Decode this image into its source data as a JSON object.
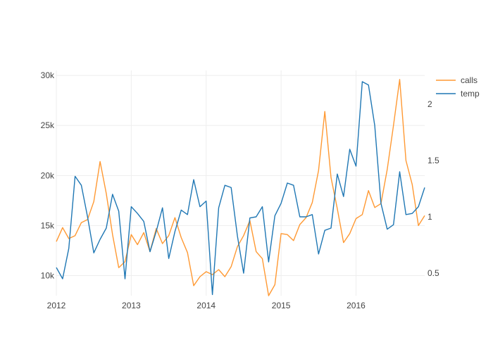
{
  "chart_data": {
    "type": "line",
    "x_start": "2012-01",
    "x_step": "1 month",
    "x_ticks": [
      "2012",
      "2013",
      "2014",
      "2015",
      "2016"
    ],
    "y_left": {
      "ylim": [
        8000,
        30500
      ],
      "ticks": [
        10000,
        15000,
        20000,
        25000,
        30000
      ],
      "tick_labels": [
        "10k",
        "15k",
        "20k",
        "25k",
        "30k"
      ]
    },
    "y_right": {
      "ylim": [
        0.3,
        2.3
      ],
      "ticks": [
        0.5,
        1,
        1.5,
        2
      ],
      "tick_labels": [
        "0.5",
        "1",
        "1.5",
        "2"
      ]
    },
    "grid": true,
    "legend": "top-right",
    "series": [
      {
        "name": "calls",
        "axis": "left",
        "color": "#ff9933",
        "values": [
          13400,
          14800,
          13700,
          14000,
          15300,
          15600,
          17400,
          21400,
          18200,
          14100,
          10800,
          11400,
          14100,
          13100,
          14300,
          12400,
          14700,
          13200,
          14000,
          15800,
          13800,
          12300,
          9000,
          9900,
          10400,
          10100,
          10600,
          9900,
          10900,
          12900,
          14000,
          15500,
          12400,
          11700,
          8000,
          9100,
          14200,
          14100,
          13500,
          15100,
          15800,
          17300,
          20500,
          26400,
          19800,
          16700,
          13300,
          14200,
          15700,
          16100,
          18500,
          16800,
          17200,
          20600,
          25000,
          29600,
          21500,
          19100,
          15000,
          16000
        ]
      },
      {
        "name": "temp",
        "axis": "right",
        "color": "#1f77b4",
        "values": [
          0.55,
          0.45,
          0.72,
          1.36,
          1.28,
          1.0,
          0.68,
          0.8,
          0.9,
          1.2,
          1.05,
          0.45,
          1.09,
          1.03,
          0.96,
          0.69,
          0.87,
          1.08,
          0.63,
          0.87,
          1.06,
          1.02,
          1.33,
          1.09,
          1.14,
          0.31,
          1.08,
          1.28,
          1.26,
          0.83,
          0.5,
          0.99,
          1.0,
          1.09,
          0.6,
          1.01,
          1.12,
          1.3,
          1.28,
          1.0,
          1.0,
          1.02,
          0.67,
          0.88,
          0.9,
          1.38,
          1.18,
          1.6,
          1.45,
          2.2,
          2.17,
          1.81,
          1.12,
          0.89,
          0.93,
          1.4,
          1.02,
          1.03,
          1.09,
          1.26
        ]
      }
    ]
  }
}
